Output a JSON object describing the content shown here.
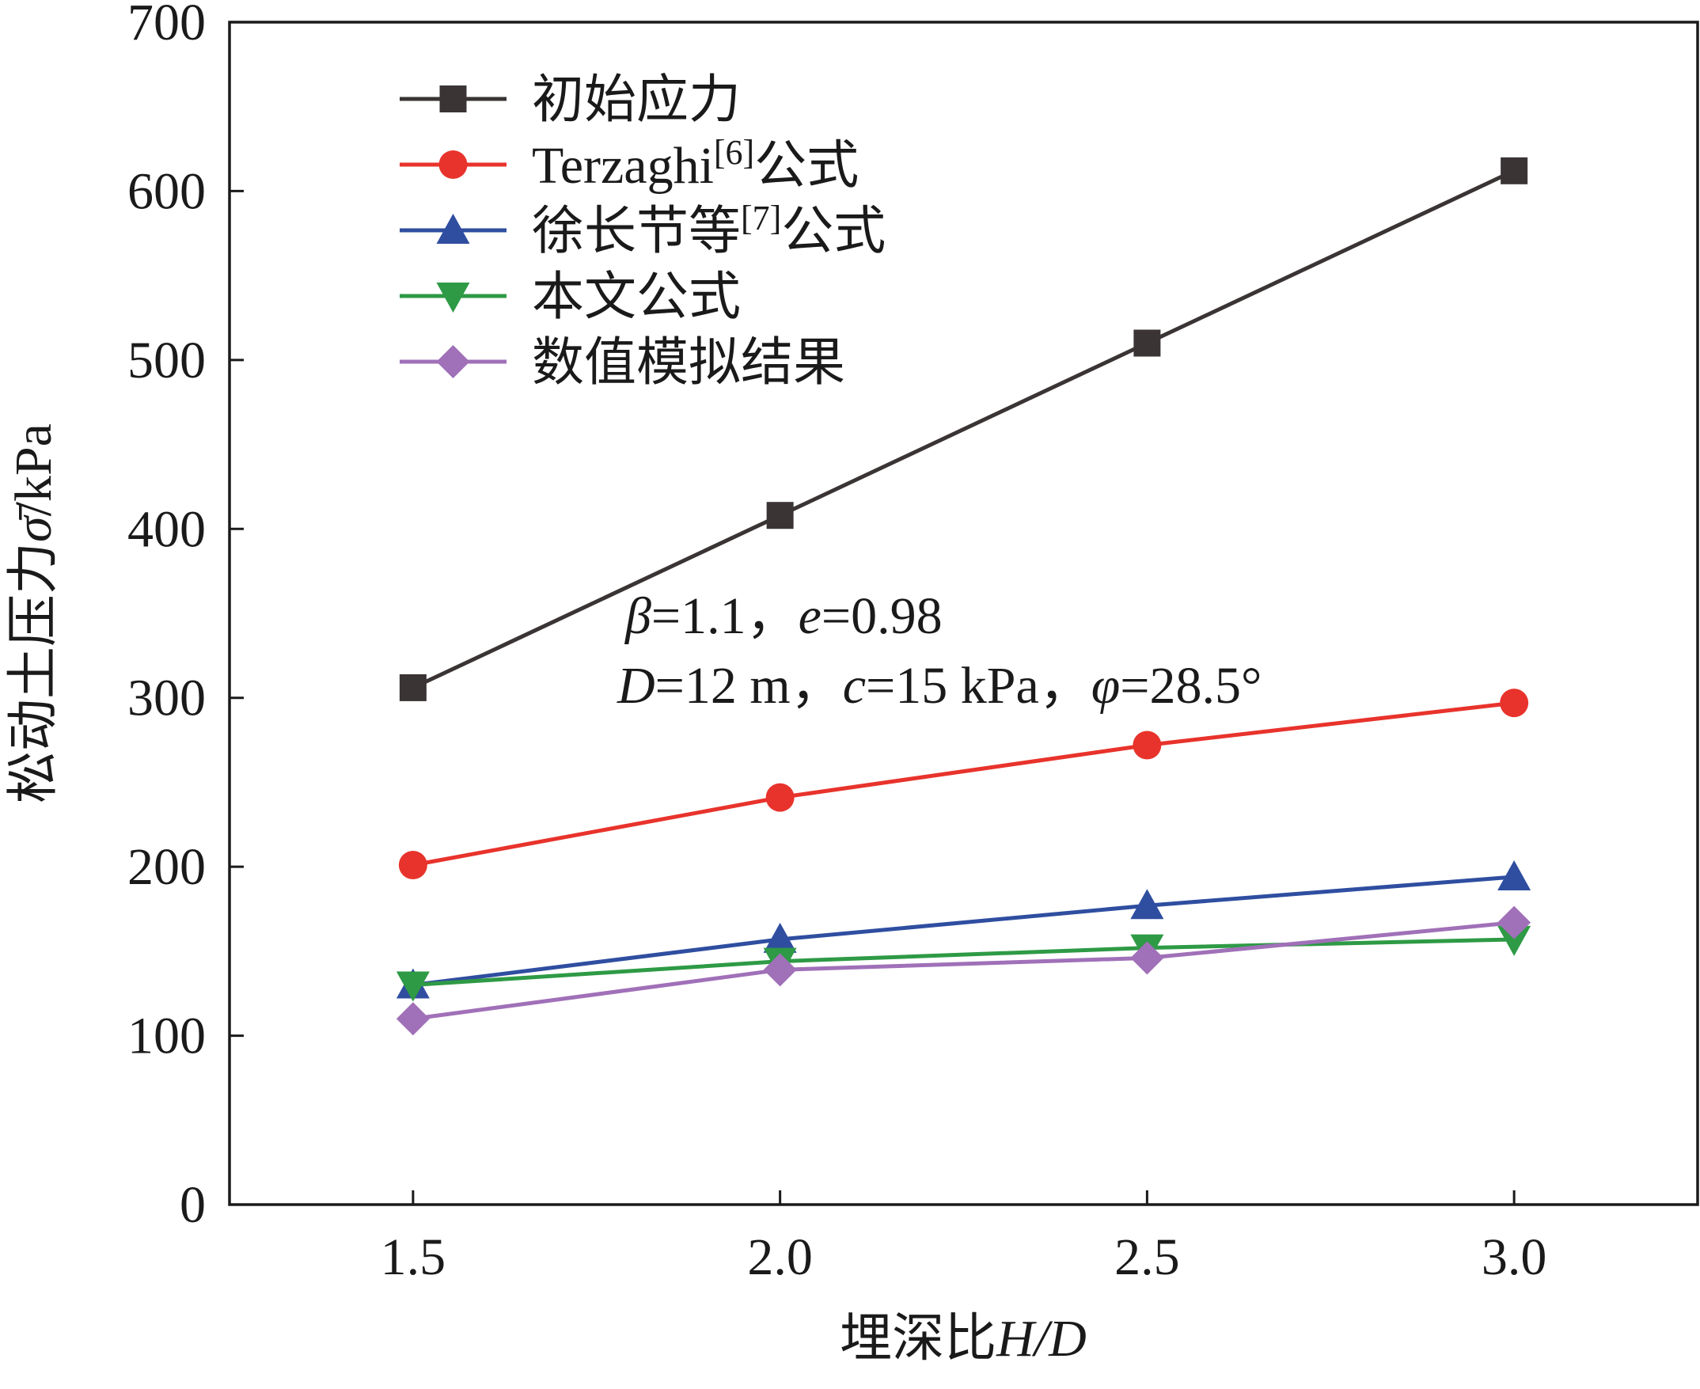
{
  "chart_data": {
    "type": "line",
    "x": [
      1.5,
      2.0,
      2.5,
      3.0
    ],
    "x_tick_labels": [
      "1.5",
      "2.0",
      "2.5",
      "3.0"
    ],
    "y_tick_labels": [
      "0",
      "100",
      "200",
      "300",
      "400",
      "500",
      "600",
      "700"
    ],
    "y_ticks": [
      0,
      100,
      200,
      300,
      400,
      500,
      600,
      700
    ],
    "xlim": [
      1.25,
      3.25
    ],
    "ylim": [
      0,
      700
    ],
    "xlabel": {
      "prefix": "埋深比",
      "var": "H/D"
    },
    "ylabel": {
      "prefix": "松动土压力",
      "var": "σ̄",
      "suffix": "/kPa"
    },
    "legend_position": "top-left",
    "series": [
      {
        "name": "初始应力",
        "name_suffix": "",
        "ref": "",
        "color": "#3a3434",
        "marker": "square",
        "values": [
          306,
          408,
          510,
          612
        ]
      },
      {
        "name": "Terzaghi",
        "ref": "[6]",
        "name_suffix": "公式",
        "color": "#e8332c",
        "marker": "circle",
        "values": [
          201,
          241,
          272,
          297
        ]
      },
      {
        "name": "徐长节等",
        "ref": "[7]",
        "name_suffix": "公式",
        "color": "#2f4ea0",
        "marker": "triangle-up",
        "values": [
          130,
          157,
          177,
          194
        ]
      },
      {
        "name": "本文公式",
        "ref": "",
        "name_suffix": "",
        "color": "#2e9a45",
        "marker": "triangle-down",
        "values": [
          130,
          144,
          152,
          157
        ]
      },
      {
        "name": "数值模拟结果",
        "ref": "",
        "name_suffix": "",
        "color": "#a070b8",
        "marker": "diamond",
        "values": [
          110,
          139,
          146,
          167
        ]
      }
    ],
    "annotations": [
      {
        "parts": [
          {
            "t": "β",
            "i": true
          },
          {
            "t": "=1.1，"
          },
          {
            "t": "e",
            "i": true
          },
          {
            "t": "=0.98"
          }
        ]
      },
      {
        "parts": [
          {
            "t": "D",
            "i": true
          },
          {
            "t": "=12 m，"
          },
          {
            "t": "c",
            "i": true
          },
          {
            "t": "=15 kPa，"
          },
          {
            "t": "φ",
            "i": true
          },
          {
            "t": "=28.5°"
          }
        ]
      }
    ]
  }
}
